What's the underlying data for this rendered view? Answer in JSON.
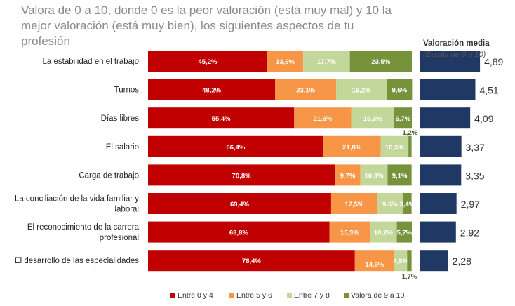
{
  "chart_data": {
    "type": "bar",
    "stacked": true,
    "orientation": "horizontal",
    "title": "Valora de 0 a 10, donde 0 es la peor valoración (está muy mal) y 10 la mejor valoración (está muy bien), los siguientes aspectos de tu profesión",
    "categories": [
      "La estabilidad en el trabajo",
      "Turnos",
      "Días libres",
      "El salario",
      "Carga de trabajo",
      "La conciliación de la vida familiar y laboral",
      "El reconocimiento de la carrera profesional",
      "El desarrollo de las especialidades"
    ],
    "series": [
      {
        "name": "Entre 0 y 4",
        "color": "#c00000",
        "values": [
          45.2,
          48.2,
          55.4,
          66.4,
          70.8,
          69.4,
          68.8,
          78.4
        ],
        "labels": [
          "45,2%",
          "48,2%",
          "55,4%",
          "66,4%",
          "70,8%",
          "69,4%",
          "68,8%",
          "78,4%"
        ]
      },
      {
        "name": "Entre 5 y 6",
        "color": "#f79646",
        "values": [
          13.6,
          23.1,
          21.6,
          21.8,
          9.7,
          17.5,
          15.3,
          14.9
        ],
        "labels": [
          "13,6%",
          "23,1%",
          "21,6%",
          "21,8%",
          "9,7%",
          "17,5%",
          "15,3%",
          "14,9%"
        ]
      },
      {
        "name": "Entre 7 y 8",
        "color": "#c4d79b",
        "values": [
          17.7,
          19.2,
          16.3,
          10.5,
          10.3,
          9.6,
          10.2,
          4.9
        ],
        "labels": [
          "17,7%",
          "19,2%",
          "16,3%",
          "10,5%",
          "10,3%",
          "9,6%",
          "10,2%",
          "4,9%"
        ]
      },
      {
        "name": "Valora de 9 a 10",
        "color": "#76933c",
        "values": [
          23.5,
          9.6,
          6.7,
          1.2,
          9.1,
          3.4,
          5.7,
          1.7
        ],
        "labels": [
          "23,5%",
          "9,6%",
          "6,7%",
          "1,2%",
          "9,1%",
          "3,4%",
          "5,7%",
          "1,7%"
        ]
      }
    ],
    "xlim": [
      0,
      100
    ],
    "legend": "bottom",
    "mean": {
      "header": "Valoración media",
      "subheader": "(Escala de 0 a 10)",
      "color": "#1f3864",
      "values": [
        4.89,
        4.51,
        4.09,
        3.37,
        3.35,
        2.97,
        2.92,
        2.28
      ],
      "labels": [
        "4,89",
        "4,51",
        "4,09",
        "3,37",
        "3,35",
        "2,97",
        "2,92",
        "2,28"
      ]
    }
  }
}
